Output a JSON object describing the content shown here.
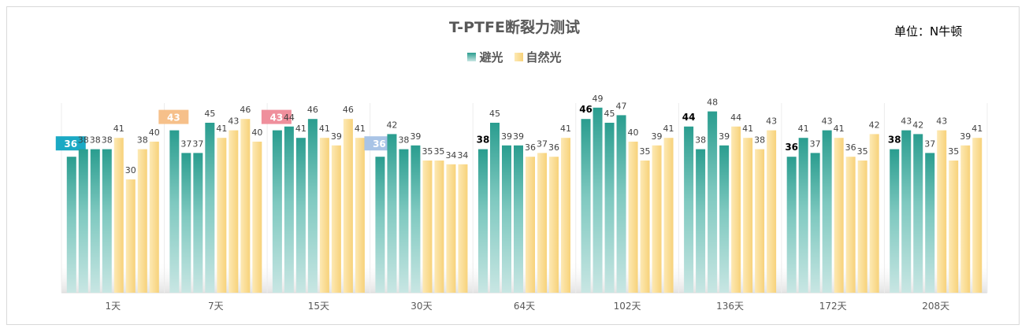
{
  "title": "T-PTFE断裂力测试",
  "unit_label": "单位：N牛顿",
  "colors": {
    "series1_top": "#2a9d8f",
    "series1_bottom": "#c8e6e3",
    "series2_left": "#fde9b4",
    "series2_right": "#f7d27a",
    "axis": "#d9d9d9",
    "label": "#404040"
  },
  "chart_data": {
    "type": "bar",
    "title": "T-PTFE断裂力测试",
    "xlabel": "",
    "ylabel": "",
    "ylim": [
      0,
      55
    ],
    "grid": false,
    "legend_position": "top",
    "categories": [
      "1天",
      "7天",
      "15天",
      "30天",
      "64天",
      "102天",
      "136天",
      "172天",
      "208天"
    ],
    "series": [
      {
        "name": "避光",
        "values": [
          [
            36,
            38,
            38,
            38
          ],
          [
            43,
            37,
            37,
            45
          ],
          [
            43,
            44,
            41,
            46
          ],
          [
            36,
            42,
            38,
            39
          ],
          [
            38,
            45,
            39,
            39
          ],
          [
            46,
            49,
            45,
            47
          ],
          [
            44,
            38,
            48,
            39
          ],
          [
            36,
            41,
            37,
            43
          ],
          [
            38,
            43,
            42,
            37
          ]
        ]
      },
      {
        "name": "自然光",
        "values": [
          [
            41,
            30,
            38,
            40
          ],
          [
            41,
            43,
            46,
            40
          ],
          [
            41,
            39,
            46,
            41
          ],
          [
            35,
            35,
            34,
            34
          ],
          [
            36,
            37,
            36,
            41
          ],
          [
            40,
            35,
            39,
            41
          ],
          [
            44,
            41,
            38,
            43
          ],
          [
            41,
            36,
            35,
            42
          ],
          [
            43,
            35,
            39,
            41
          ]
        ]
      }
    ],
    "highlight_labels": [
      {
        "category": "1天",
        "value": 36,
        "color": "#1ba9c4"
      },
      {
        "category": "7天",
        "value": 43,
        "color": "#f6c08a"
      },
      {
        "category": "15天",
        "value": 43,
        "color": "#ef8f9c"
      },
      {
        "category": "30天",
        "value": 36,
        "color": "#a9c4e6"
      }
    ]
  }
}
